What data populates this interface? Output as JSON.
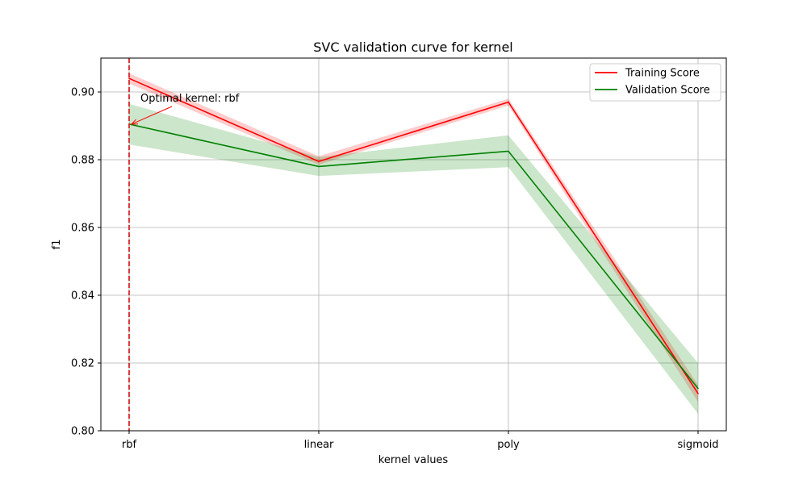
{
  "chart_data": {
    "type": "line",
    "title": "SVC validation curve for kernel",
    "xlabel": "kernel values",
    "ylabel": "f1",
    "categories": [
      "rbf",
      "linear",
      "poly",
      "sigmoid"
    ],
    "ylim": [
      0.8,
      0.91
    ],
    "yticks": [
      0.8,
      0.82,
      0.84,
      0.86,
      0.88,
      0.9
    ],
    "ytick_labels": [
      "0.80",
      "0.82",
      "0.84",
      "0.86",
      "0.88",
      "0.90"
    ],
    "grid": true,
    "legend_position": "top-right",
    "series": [
      {
        "name": "Training Score",
        "color": "#ff0000",
        "band_color": "#ff0000",
        "values": [
          0.904,
          0.8795,
          0.897,
          0.811
        ],
        "lower": [
          0.9025,
          0.8785,
          0.896,
          0.8085
        ],
        "upper": [
          0.9055,
          0.881,
          0.898,
          0.8135
        ]
      },
      {
        "name": "Validation Score",
        "color": "#008000",
        "band_color": "#008000",
        "values": [
          0.8905,
          0.878,
          0.8825,
          0.8125
        ],
        "lower": [
          0.8845,
          0.8752,
          0.8778,
          0.805
        ],
        "upper": [
          0.8965,
          0.8808,
          0.8872,
          0.82
        ]
      }
    ],
    "vline": {
      "category": "rbf",
      "color": "#d62728"
    },
    "annotation": {
      "text": "Optimal kernel: rbf",
      "target_category": "rbf",
      "target_value": 0.8905,
      "color": "#ff0000"
    }
  }
}
